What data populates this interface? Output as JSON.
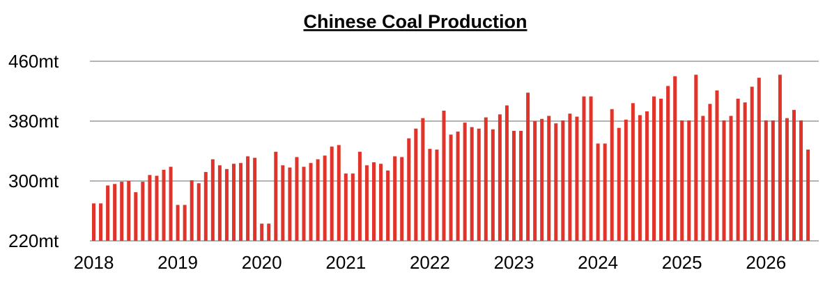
{
  "chart_data": {
    "type": "bar",
    "title": "Chinese Coal Production",
    "xlabel": "",
    "ylabel": "",
    "ylim": [
      220,
      460
    ],
    "y_ticks": [
      "220mt",
      "300mt",
      "380mt",
      "460mt"
    ],
    "y_tick_values": [
      220,
      300,
      380,
      460
    ],
    "x_ticks": [
      "2018",
      "2019",
      "2020",
      "2021",
      "2022",
      "2023",
      "2024",
      "2025",
      "2026"
    ],
    "grid": true,
    "bar_color": "#e0342b",
    "grid_color": "#b3b3b3",
    "x_start": "2018-01",
    "series": [
      {
        "values": [
          270,
          270,
          294,
          296,
          299,
          300,
          285,
          299,
          308,
          307,
          315,
          319,
          268,
          268,
          301,
          297,
          312,
          329,
          321,
          316,
          323,
          324,
          333,
          331,
          243,
          243,
          339,
          321,
          318,
          332,
          319,
          324,
          329,
          334,
          346,
          348,
          310,
          310,
          339,
          321,
          325,
          323,
          314,
          333,
          332,
          357,
          370,
          384,
          343,
          342,
          394,
          362,
          366,
          378,
          372,
          370,
          385,
          369,
          389,
          401,
          367,
          367,
          418,
          380,
          383,
          387,
          377,
          381,
          390,
          386,
          413,
          413,
          350,
          350,
          396,
          371,
          382,
          404,
          388,
          393,
          413,
          410,
          427,
          440,
          381,
          381,
          442,
          387,
          403,
          421,
          381,
          387,
          410,
          405,
          426,
          438,
          381,
          381,
          442,
          384,
          395,
          381,
          342
        ]
      }
    ]
  }
}
